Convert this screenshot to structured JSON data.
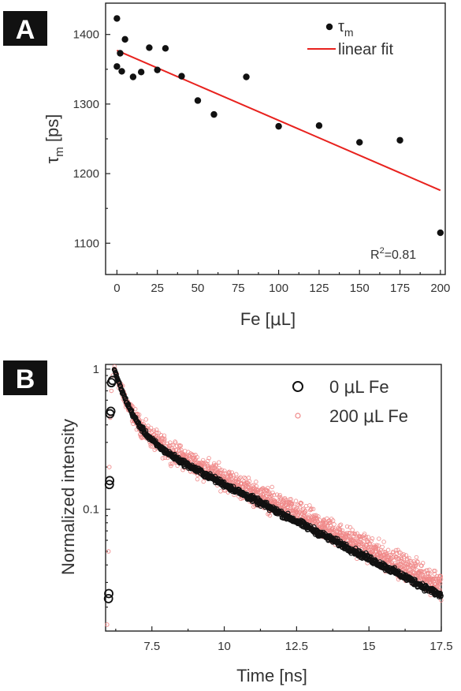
{
  "colors": {
    "fit": "#e8221e",
    "black": "#111111",
    "red_points": "#f08a8a"
  },
  "panelA": {
    "label": "A",
    "chart_data": {
      "type": "scatter",
      "xlabel_main": "Fe [",
      "xlabel_mu": "μ",
      "xlabel_end": "L]",
      "ylabel_tau": "τ",
      "ylabel_sub": "m",
      "ylabel_unit": " [ps]",
      "xlim": [
        -7,
        203
      ],
      "ylim": [
        1055,
        1445
      ],
      "xticks": [
        0,
        25,
        50,
        75,
        100,
        125,
        150,
        175,
        200
      ],
      "yticks": [
        1100,
        1200,
        1300,
        1400
      ],
      "legend": {
        "points_tau": "τ",
        "points_sub": "m",
        "fit": "linear fit",
        "position": "top-right"
      },
      "annotation": {
        "base": "R",
        "sup": "2",
        "rest": "=0.81"
      },
      "series": [
        {
          "name": "τm",
          "x": [
            0,
            0,
            2,
            3,
            5,
            10,
            15,
            20,
            25,
            30,
            40,
            50,
            60,
            80,
            100,
            125,
            150,
            175,
            200
          ],
          "y": [
            1423,
            1354,
            1373,
            1347,
            1393,
            1339,
            1346,
            1381,
            1349,
            1380,
            1340,
            1305,
            1285,
            1339,
            1268,
            1269,
            1245,
            1248,
            1115
          ]
        }
      ],
      "fit_line": {
        "x": [
          0,
          200
        ],
        "y": [
          1377,
          1176
        ]
      }
    }
  },
  "panelB": {
    "label": "B",
    "chart_data": {
      "type": "scatter",
      "xlabel": "Time [ns]",
      "ylabel": "Normalized intensity",
      "xlim": [
        5.9,
        17.5
      ],
      "ylog": true,
      "ylim": [
        0.0135,
        1.08
      ],
      "xticks": [
        "7.5",
        "10",
        "12.5",
        "15",
        "17.5"
      ],
      "xtick_values": [
        7.5,
        10,
        12.5,
        15,
        17.5
      ],
      "ytick_labels": [
        "0.1",
        "1"
      ],
      "ytick_values": [
        0.1,
        1
      ],
      "legend": {
        "position": "top-right",
        "entries": [
          {
            "num": "0 ",
            "mu": "μ",
            "rest": "L Fe"
          },
          {
            "num": "200 ",
            "mu": "μ",
            "rest": "L Fe"
          }
        ]
      },
      "series": [
        {
          "name": "0 μL Fe",
          "rise": {
            "x": [
              6.0,
              6.01,
              6.03,
              6.04,
              6.05,
              6.08,
              6.1,
              6.14
            ],
            "y": [
              0.023,
              0.025,
              0.15,
              0.16,
              0.48,
              0.5,
              0.8,
              0.83
            ]
          },
          "decay": {
            "t0": 6.2,
            "t1": 17.5,
            "a1": 0.62,
            "tau1": 0.45,
            "a2": 0.38,
            "tau2": 4.1
          }
        },
        {
          "name": "200 μL Fe",
          "rise": {
            "x": [
              5.95,
              6.0,
              6.03,
              6.06,
              6.1,
              6.15
            ],
            "y": [
              0.015,
              0.05,
              0.2,
              0.45,
              0.7,
              0.9
            ]
          },
          "decay": {
            "t0": 6.2,
            "t1": 17.5,
            "a1": 0.6,
            "tau1": 0.42,
            "a2": 0.4,
            "tau2": 4.3
          }
        }
      ]
    }
  }
}
